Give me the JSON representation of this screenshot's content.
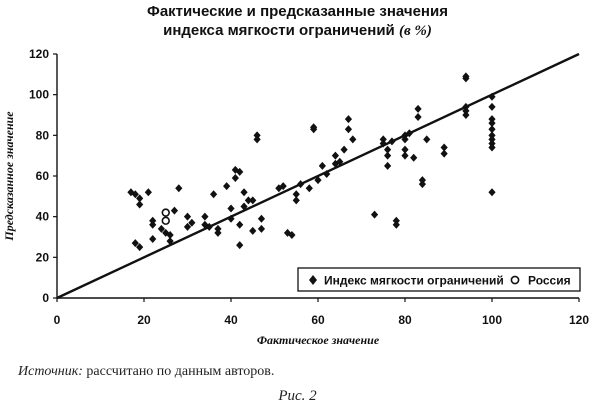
{
  "title": {
    "line1": "Фактические и предсказанные значения",
    "line2_main": "индекса мягкости ограничений ",
    "line2_unit": "(в %)"
  },
  "source": {
    "label": "Источник:",
    "text": " рассчитано по данным авторов."
  },
  "figure_caption": "Рис. 2",
  "chart_data": {
    "type": "scatter",
    "xlabel": "Фактическое значение",
    "ylabel": "Предсказанное значение",
    "xlim": [
      0,
      120
    ],
    "ylim": [
      0,
      120
    ],
    "xticks": [
      0,
      20,
      40,
      60,
      80,
      100,
      120
    ],
    "yticks": [
      0,
      20,
      40,
      60,
      80,
      100,
      120
    ],
    "legend_position": "bottom-right",
    "reference_line": {
      "from": [
        0,
        0
      ],
      "to": [
        120,
        120
      ]
    },
    "series": [
      {
        "name": "Индекс мягкости ограничений",
        "marker": "diamond",
        "points": [
          [
            17,
            52
          ],
          [
            18,
            51
          ],
          [
            19,
            49
          ],
          [
            19,
            46
          ],
          [
            18,
            27
          ],
          [
            19,
            25
          ],
          [
            21,
            52
          ],
          [
            22,
            38
          ],
          [
            22,
            36
          ],
          [
            22,
            29
          ],
          [
            24,
            34
          ],
          [
            25,
            32
          ],
          [
            26,
            31
          ],
          [
            26,
            28
          ],
          [
            27,
            43
          ],
          [
            28,
            54
          ],
          [
            30,
            40
          ],
          [
            30,
            35
          ],
          [
            31,
            37
          ],
          [
            34,
            40
          ],
          [
            34,
            36
          ],
          [
            35,
            35
          ],
          [
            36,
            51
          ],
          [
            37,
            34
          ],
          [
            37,
            32
          ],
          [
            39,
            55
          ],
          [
            40,
            39
          ],
          [
            40,
            44
          ],
          [
            41,
            63
          ],
          [
            41,
            59
          ],
          [
            42,
            26
          ],
          [
            42,
            36
          ],
          [
            42,
            62
          ],
          [
            43,
            52
          ],
          [
            43,
            45
          ],
          [
            44,
            48
          ],
          [
            45,
            33
          ],
          [
            45,
            48
          ],
          [
            46,
            80
          ],
          [
            46,
            78
          ],
          [
            47,
            34
          ],
          [
            47,
            39
          ],
          [
            51,
            54
          ],
          [
            52,
            55
          ],
          [
            53,
            32
          ],
          [
            54,
            31
          ],
          [
            55,
            48
          ],
          [
            55,
            51
          ],
          [
            56,
            56
          ],
          [
            58,
            54
          ],
          [
            59,
            84
          ],
          [
            59,
            83
          ],
          [
            60,
            58
          ],
          [
            61,
            65
          ],
          [
            62,
            61
          ],
          [
            64,
            70
          ],
          [
            64,
            66
          ],
          [
            65,
            67
          ],
          [
            66,
            73
          ],
          [
            67,
            88
          ],
          [
            67,
            83
          ],
          [
            68,
            78
          ],
          [
            73,
            41
          ],
          [
            75,
            78
          ],
          [
            75,
            76
          ],
          [
            76,
            73
          ],
          [
            76,
            70
          ],
          [
            76,
            65
          ],
          [
            77,
            77
          ],
          [
            78,
            38
          ],
          [
            78,
            36
          ],
          [
            80,
            80
          ],
          [
            80,
            78
          ],
          [
            80,
            73
          ],
          [
            80,
            70
          ],
          [
            81,
            81
          ],
          [
            82,
            69
          ],
          [
            83,
            89
          ],
          [
            83,
            93
          ],
          [
            84,
            58
          ],
          [
            84,
            56
          ],
          [
            85,
            78
          ],
          [
            89,
            71
          ],
          [
            89,
            74
          ],
          [
            94,
            109
          ],
          [
            94,
            108
          ],
          [
            94,
            94
          ],
          [
            94,
            90
          ],
          [
            94,
            92
          ],
          [
            100,
            99
          ],
          [
            100,
            94
          ],
          [
            100,
            88
          ],
          [
            100,
            86
          ],
          [
            100,
            83
          ],
          [
            100,
            80
          ],
          [
            100,
            78
          ],
          [
            100,
            76
          ],
          [
            100,
            74
          ],
          [
            100,
            52
          ]
        ]
      },
      {
        "name": "Россия",
        "marker": "open-circle",
        "points": [
          [
            25,
            42
          ],
          [
            25,
            38
          ]
        ]
      }
    ]
  }
}
